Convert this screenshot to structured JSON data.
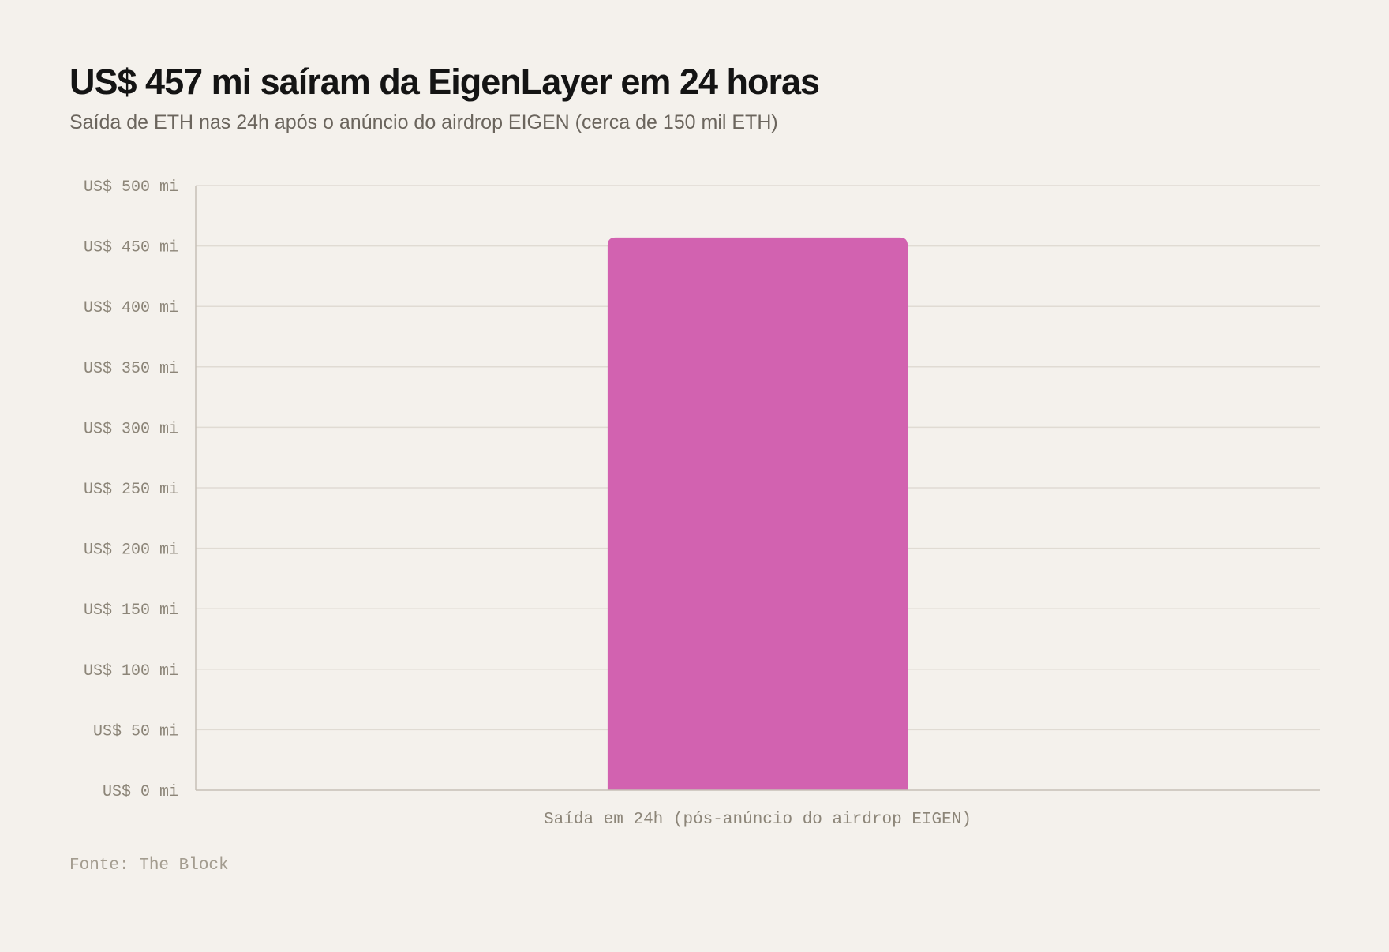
{
  "colors": {
    "background": "#f4f1ec",
    "bar": "#d262b0",
    "gridline": "#e0dbd3",
    "axis": "#c6c0b6"
  },
  "chart_data": {
    "type": "bar",
    "title": "US$ 457 mi saíram da EigenLayer em 24 horas",
    "subtitle": "Saída de ETH nas 24h após o anúncio do airdrop EIGEN (cerca de 150 mil ETH)",
    "categories": [
      "Saída em 24h (pós-anúncio do airdrop EIGEN)"
    ],
    "values": [
      457
    ],
    "ylim": [
      0,
      500
    ],
    "y_ticks": [
      0,
      50,
      100,
      150,
      200,
      250,
      300,
      350,
      400,
      450,
      500
    ],
    "y_tick_labels": [
      "US$ 0 mi",
      "US$ 50 mi",
      "US$ 100 mi",
      "US$ 150 mi",
      "US$ 200 mi",
      "US$ 250 mi",
      "US$ 300 mi",
      "US$ 350 mi",
      "US$ 400 mi",
      "US$ 450 mi",
      "US$ 500 mi"
    ],
    "xlabel": "",
    "ylabel": "",
    "grid": true,
    "legend": "none",
    "source": "Fonte: The Block"
  }
}
